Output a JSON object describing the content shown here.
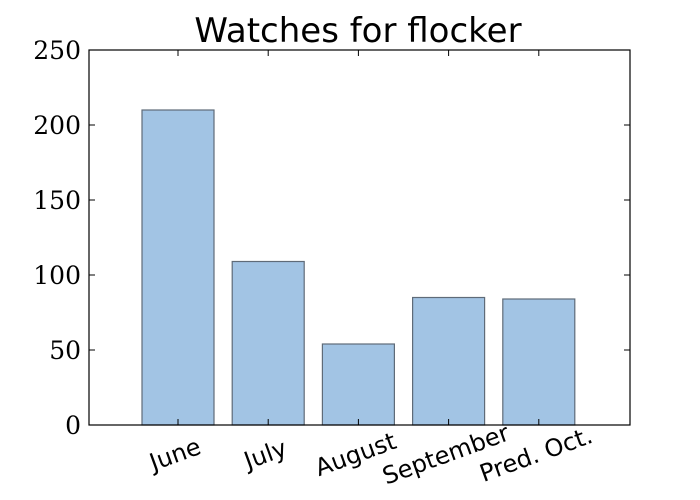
{
  "chart_data": {
    "type": "bar",
    "title": "Watches for flocker",
    "xlabel": "",
    "ylabel": "",
    "categories": [
      "June",
      "July",
      "August",
      "September",
      "Pred. Oct."
    ],
    "values": [
      210,
      109,
      54,
      85,
      84
    ],
    "ylim": [
      0,
      250
    ],
    "yticks": [
      0,
      50,
      100,
      150,
      200,
      250
    ],
    "grid": false,
    "legend": "none",
    "bar_color": "#a2c4e4",
    "edge_color": "#5f6b78",
    "xtick_rotation_deg": 20
  }
}
